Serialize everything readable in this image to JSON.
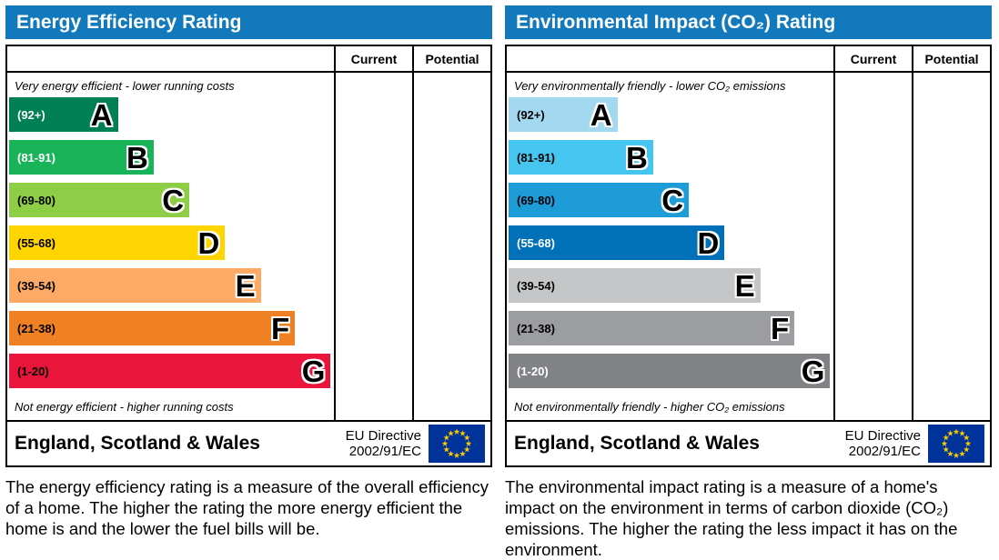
{
  "accent_color": "#1279bd",
  "eu_flag": {
    "background": "#003399",
    "star_color": "#ffcc00"
  },
  "chart_data": [
    {
      "type": "bar",
      "title": "Energy Efficiency Rating",
      "columns": [
        "Current",
        "Potential"
      ],
      "current_value": "",
      "potential_value": "",
      "top_note": "Very energy efficient - lower running costs",
      "bottom_note": "Not energy efficient - higher running costs",
      "categories": [
        "A",
        "B",
        "C",
        "D",
        "E",
        "F",
        "G"
      ],
      "score_range": [
        1,
        100
      ],
      "bands": [
        {
          "letter": "A",
          "range": "(92+)",
          "range_values": "92+",
          "color": "#008054",
          "text_color": "#ffffff",
          "length_pct": 33.5
        },
        {
          "letter": "B",
          "range": "(81-91)",
          "range_values": "81-91",
          "color": "#19b459",
          "text_color": "#ffffff",
          "length_pct": 44.5
        },
        {
          "letter": "C",
          "range": "(69-80)",
          "range_values": "69-80",
          "color": "#8dce46",
          "text_color": "#000000",
          "length_pct": 55.5
        },
        {
          "letter": "D",
          "range": "(55-68)",
          "range_values": "55-68",
          "color": "#ffd500",
          "text_color": "#000000",
          "length_pct": 66.5
        },
        {
          "letter": "E",
          "range": "(39-54)",
          "range_values": "39-54",
          "color": "#fcaa65",
          "text_color": "#000000",
          "length_pct": 77.5
        },
        {
          "letter": "F",
          "range": "(21-38)",
          "range_values": "21-38",
          "color": "#ef8023",
          "text_color": "#000000",
          "length_pct": 88
        },
        {
          "letter": "G",
          "range": "(1-20)",
          "range_values": "1-20",
          "color": "#e9153b",
          "text_color": "#000000",
          "length_pct": 99
        }
      ],
      "footer": {
        "region": "England, Scotland & Wales",
        "directive_line1": "EU Directive",
        "directive_line2": "2002/91/EC"
      },
      "description": "The energy efficiency rating is a measure of the overall efficiency of a home. The higher the rating the more energy efficient the home is and the lower the fuel bills will be."
    },
    {
      "type": "bar",
      "title": "Environmental Impact (CO₂) Rating",
      "columns": [
        "Current",
        "Potential"
      ],
      "current_value": "",
      "potential_value": "",
      "top_note": "Very environmentally friendly - lower CO₂ emissions",
      "bottom_note": "Not environmentally friendly - higher CO₂ emissions",
      "categories": [
        "A",
        "B",
        "C",
        "D",
        "E",
        "F",
        "G"
      ],
      "score_range": [
        1,
        100
      ],
      "bands": [
        {
          "letter": "A",
          "range": "(92+)",
          "range_values": "92+",
          "color": "#a2d9f0",
          "text_color": "#000000",
          "length_pct": 33.5
        },
        {
          "letter": "B",
          "range": "(81-91)",
          "range_values": "81-91",
          "color": "#45c5f0",
          "text_color": "#000000",
          "length_pct": 44.5
        },
        {
          "letter": "C",
          "range": "(69-80)",
          "range_values": "69-80",
          "color": "#1d9cd8",
          "text_color": "#000000",
          "length_pct": 55.5
        },
        {
          "letter": "D",
          "range": "(55-68)",
          "range_values": "55-68",
          "color": "#0071b9",
          "text_color": "#ffffff",
          "length_pct": 66.5
        },
        {
          "letter": "E",
          "range": "(39-54)",
          "range_values": "39-54",
          "color": "#c5c6c8",
          "text_color": "#000000",
          "length_pct": 77.5
        },
        {
          "letter": "F",
          "range": "(21-38)",
          "range_values": "21-38",
          "color": "#9c9da0",
          "text_color": "#000000",
          "length_pct": 88
        },
        {
          "letter": "G",
          "range": "(1-20)",
          "range_values": "1-20",
          "color": "#808285",
          "text_color": "#ffffff",
          "length_pct": 99
        }
      ],
      "footer": {
        "region": "England, Scotland & Wales",
        "directive_line1": "EU Directive",
        "directive_line2": "2002/91/EC"
      },
      "description": "The environmental impact rating is a measure of a home's impact on the environment in terms of carbon dioxide (CO₂) emissions. The higher the rating the less impact it has on the environment."
    }
  ]
}
